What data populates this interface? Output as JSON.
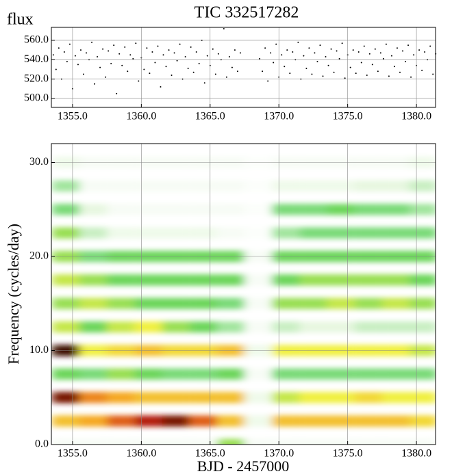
{
  "chart_data": [
    {
      "type": "scatter",
      "title": "TIC 332517282",
      "ylabel": "flux",
      "color": "#000000",
      "grid": true,
      "xlim": [
        1353.46,
        1381.39
      ],
      "ylim": [
        490.8,
        573.4
      ],
      "xticks": [
        {
          "value": 1355,
          "label": "1355.0"
        },
        {
          "value": 1360,
          "label": "1360.0"
        },
        {
          "value": 1365,
          "label": "1365.0"
        },
        {
          "value": 1370,
          "label": "1370.0"
        },
        {
          "value": 1375,
          "label": "1375.0"
        },
        {
          "value": 1380,
          "label": "1380.0"
        }
      ],
      "yticks": [
        {
          "value": 500,
          "label": "500.0"
        },
        {
          "value": 520,
          "label": "520.0"
        },
        {
          "value": 540,
          "label": "540.0"
        },
        {
          "value": 560,
          "label": "560.0"
        }
      ],
      "x": [
        1353.6,
        1353.8,
        1354.0,
        1354.2,
        1354.4,
        1354.6,
        1354.8,
        1355.0,
        1355.2,
        1355.4,
        1355.6,
        1355.8,
        1356.0,
        1356.2,
        1356.4,
        1356.6,
        1356.8,
        1357.0,
        1357.2,
        1357.4,
        1357.6,
        1357.8,
        1358.0,
        1358.2,
        1358.4,
        1358.6,
        1358.8,
        1359.0,
        1359.2,
        1359.4,
        1359.6,
        1359.8,
        1360.0,
        1360.2,
        1360.4,
        1360.6,
        1360.8,
        1361.0,
        1361.2,
        1361.4,
        1361.6,
        1361.8,
        1362.0,
        1362.2,
        1362.4,
        1362.6,
        1362.8,
        1363.0,
        1363.2,
        1363.4,
        1363.6,
        1363.8,
        1364.0,
        1364.2,
        1364.4,
        1364.6,
        1364.8,
        1365.0,
        1365.2,
        1365.4,
        1365.6,
        1365.8,
        1366.0,
        1366.2,
        1366.4,
        1366.6,
        1366.8,
        1367.0,
        1367.2,
        1368.6,
        1368.8,
        1369.0,
        1369.2,
        1369.4,
        1369.6,
        1369.8,
        1370.0,
        1370.2,
        1370.4,
        1370.6,
        1370.8,
        1371.0,
        1371.2,
        1371.4,
        1371.6,
        1371.8,
        1372.0,
        1372.2,
        1372.4,
        1372.6,
        1372.8,
        1373.0,
        1373.2,
        1373.4,
        1373.6,
        1373.8,
        1374.0,
        1374.2,
        1374.4,
        1374.6,
        1374.8,
        1375.0,
        1375.2,
        1375.4,
        1375.6,
        1375.8,
        1376.0,
        1376.2,
        1376.4,
        1376.6,
        1376.8,
        1377.0,
        1377.2,
        1377.4,
        1377.6,
        1377.8,
        1378.0,
        1378.2,
        1378.4,
        1378.6,
        1378.8,
        1379.0,
        1379.2,
        1379.4,
        1379.6,
        1379.8,
        1380.0,
        1380.2,
        1380.4,
        1380.6,
        1380.8,
        1381.0,
        1381.2,
        1381.4
      ],
      "y": [
        545,
        530,
        552,
        520,
        548,
        538,
        556,
        510,
        544,
        535,
        550,
        525,
        547,
        540,
        558,
        515,
        543,
        532,
        551,
        522,
        549,
        536,
        555,
        505,
        546,
        534,
        553,
        528,
        545,
        541,
        557,
        518,
        542,
        530,
        552,
        526,
        548,
        537,
        554,
        512,
        545,
        533,
        550,
        524,
        547,
        539,
        556,
        520,
        543,
        531,
        553,
        527,
        548,
        536,
        560,
        516,
        544,
        534,
        551,
        525,
        546,
        540,
        572,
        522,
        543,
        532,
        550,
        528,
        547,
        541,
        528,
        552,
        518,
        547,
        537,
        556,
        522,
        545,
        533,
        550,
        526,
        548,
        540,
        558,
        520,
        544,
        531,
        552,
        525,
        547,
        538,
        555,
        523,
        543,
        534,
        551,
        527,
        549,
        541,
        557,
        521,
        545,
        532,
        550,
        526,
        548,
        537,
        554,
        524,
        546,
        535,
        551,
        528,
        547,
        541,
        556,
        523,
        544,
        533,
        552,
        527,
        549,
        538,
        555,
        522,
        545,
        534,
        550,
        529,
        548,
        540,
        554,
        525,
        546
      ]
    },
    {
      "type": "heatmap",
      "xlabel": "BJD - 2457000",
      "ylabel": "Frequency (cycles/day)",
      "grid": true,
      "xlim": [
        1353.46,
        1381.39
      ],
      "ylim": [
        0,
        32
      ],
      "zlim": [
        0,
        1
      ],
      "colormap": [
        "#ffffff",
        "#e4f6dc",
        "#5fd35f",
        "#f0f040",
        "#f5a020",
        "#c81e0a",
        "#000000"
      ],
      "xticks": [
        {
          "value": 1355,
          "label": "1355.0"
        },
        {
          "value": 1360,
          "label": "1360.0"
        },
        {
          "value": 1365,
          "label": "1365.0"
        },
        {
          "value": 1370,
          "label": "1370.0"
        },
        {
          "value": 1375,
          "label": "1375.0"
        },
        {
          "value": 1380,
          "label": "1380.0"
        }
      ],
      "yticks": [
        {
          "value": 0,
          "label": "0.0"
        },
        {
          "value": 10,
          "label": "10.0"
        },
        {
          "value": 20,
          "label": "20.0"
        },
        {
          "value": 30,
          "label": "30.0"
        }
      ],
      "x_edges": [
        1353.5,
        1355.5,
        1357.5,
        1359.5,
        1361.5,
        1363.5,
        1365.5,
        1367.5,
        1369.5,
        1371.5,
        1373.5,
        1375.5,
        1377.5,
        1379.5,
        1381.5
      ],
      "y": [
        0,
        2.5,
        5,
        7.5,
        10,
        12.5,
        15,
        17.5,
        20,
        22.5,
        25,
        27.5,
        30
      ],
      "z": [
        [
          0.05,
          0.05,
          0.05,
          0.05,
          0.05,
          0.05,
          0.4,
          0.05,
          0.05,
          0.05,
          0.05,
          0.05,
          0.05,
          0.05
        ],
        [
          0.6,
          0.65,
          0.75,
          0.85,
          0.9,
          0.75,
          0.6,
          0.1,
          0.6,
          0.6,
          0.6,
          0.6,
          0.6,
          0.55
        ],
        [
          0.9,
          0.7,
          0.65,
          0.6,
          0.6,
          0.6,
          0.6,
          0.1,
          0.45,
          0.5,
          0.5,
          0.55,
          0.5,
          0.5
        ],
        [
          0.35,
          0.3,
          0.4,
          0.35,
          0.3,
          0.3,
          0.35,
          0.05,
          0.3,
          0.3,
          0.3,
          0.3,
          0.3,
          0.3
        ],
        [
          0.95,
          0.5,
          0.55,
          0.6,
          0.55,
          0.55,
          0.6,
          0.1,
          0.5,
          0.5,
          0.5,
          0.5,
          0.5,
          0.45
        ],
        [
          0.45,
          0.35,
          0.45,
          0.5,
          0.4,
          0.35,
          0.25,
          0.05,
          0.2,
          0.15,
          0.15,
          0.2,
          0.2,
          0.2
        ],
        [
          0.4,
          0.45,
          0.4,
          0.35,
          0.35,
          0.35,
          0.3,
          0.05,
          0.4,
          0.4,
          0.45,
          0.4,
          0.45,
          0.4
        ],
        [
          0.45,
          0.4,
          0.35,
          0.35,
          0.35,
          0.35,
          0.35,
          0.05,
          0.35,
          0.4,
          0.4,
          0.4,
          0.4,
          0.35
        ],
        [
          0.4,
          0.3,
          0.35,
          0.35,
          0.35,
          0.35,
          0.35,
          0.05,
          0.35,
          0.35,
          0.35,
          0.35,
          0.35,
          0.35
        ],
        [
          0.4,
          0.2,
          0.1,
          0.1,
          0.1,
          0.1,
          0.05,
          0.02,
          0.25,
          0.3,
          0.3,
          0.3,
          0.3,
          0.3
        ],
        [
          0.3,
          0.15,
          0.05,
          0.05,
          0.05,
          0.05,
          0.05,
          0.02,
          0.3,
          0.3,
          0.35,
          0.3,
          0.3,
          0.25
        ],
        [
          0.25,
          0.05,
          0.05,
          0.05,
          0.05,
          0.05,
          0.05,
          0.02,
          0.1,
          0.1,
          0.1,
          0.15,
          0.15,
          0.2
        ],
        [
          0.1,
          0.05,
          0.05,
          0.05,
          0.05,
          0.05,
          0.05,
          0.02,
          0.05,
          0.05,
          0.05,
          0.05,
          0.05,
          0.1
        ]
      ]
    }
  ]
}
